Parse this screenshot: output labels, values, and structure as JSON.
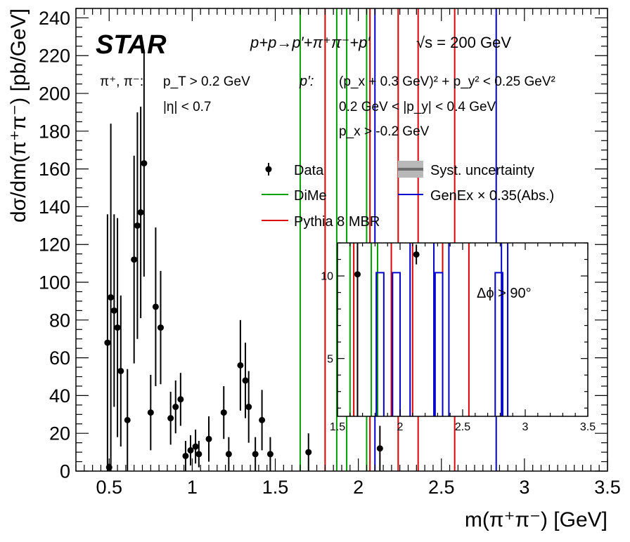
{
  "chart_data": [
    {
      "type": "scatter",
      "title": "STAR",
      "process": "p+p→p′+π⁺π⁻+p′",
      "energy": "√s = 200 GeV",
      "xlabel": "m(π⁺π⁻) [GeV]",
      "ylabel": "dσ/dm(π⁺π⁻) [pb/GeV]",
      "xlim": [
        0.3,
        3.5
      ],
      "ylim": [
        0,
        245
      ],
      "x_ticks": [
        "0.5",
        "1",
        "1.5",
        "2",
        "2.5",
        "3",
        "3.5"
      ],
      "y_ticks": [
        "0",
        "20",
        "40",
        "60",
        "80",
        "100",
        "120",
        "140",
        "160",
        "180",
        "200",
        "220",
        "240"
      ],
      "grid": false,
      "legend_position": "upper-right",
      "cuts": {
        "pion_label": "π⁺, π⁻:",
        "pion_lines": [
          "p_T > 0.2 GeV",
          "|η| < 0.7"
        ],
        "proton_label": "p′:",
        "proton_lines": [
          "(p_x + 0.3 GeV)² + p_y² < 0.25 GeV²",
          "0.2 GeV < |p_y| < 0.4 GeV",
          "p_x > -0.2 GeV"
        ]
      },
      "legend": [
        {
          "label": "Data",
          "marker": "point",
          "color": "#000000"
        },
        {
          "label": "Syst. uncertainty",
          "marker": "band",
          "color": "#a0a0a0"
        },
        {
          "label": "DiMe",
          "marker": "line",
          "color": "#00a000"
        },
        {
          "label": "GenEx × 0.35(Abs.)",
          "marker": "line",
          "color": "#0000cc"
        },
        {
          "label": "Pythia 8 MBR",
          "marker": "line",
          "color": "#dd0000"
        }
      ],
      "series": [
        {
          "name": "Data",
          "color": "#000000",
          "points": [
            {
              "x": 0.49,
              "y": 68,
              "err": 68
            },
            {
              "x": 0.5,
              "y": 2,
              "err": 2
            },
            {
              "x": 0.51,
              "y": 92,
              "err": 92
            },
            {
              "x": 0.53,
              "y": 85,
              "err": 51
            },
            {
              "x": 0.55,
              "y": 76,
              "err": 58
            },
            {
              "x": 0.57,
              "y": 53,
              "err": 40
            },
            {
              "x": 0.61,
              "y": 27,
              "err": 27
            },
            {
              "x": 0.65,
              "y": 112,
              "err": 55
            },
            {
              "x": 0.67,
              "y": 130,
              "err": 60
            },
            {
              "x": 0.69,
              "y": 137,
              "err": 56
            },
            {
              "x": 0.71,
              "y": 163,
              "err": 60
            },
            {
              "x": 0.75,
              "y": 31,
              "err": 20
            },
            {
              "x": 0.78,
              "y": 87,
              "err": 42
            },
            {
              "x": 0.81,
              "y": 76,
              "err": 30
            },
            {
              "x": 0.87,
              "y": 28,
              "err": 14
            },
            {
              "x": 0.9,
              "y": 34,
              "err": 14
            },
            {
              "x": 0.93,
              "y": 38,
              "err": 14
            },
            {
              "x": 0.96,
              "y": 8,
              "err": 8
            },
            {
              "x": 0.99,
              "y": 11,
              "err": 8
            },
            {
              "x": 1.02,
              "y": 13,
              "err": 9
            },
            {
              "x": 1.04,
              "y": 9,
              "err": 7
            },
            {
              "x": 1.1,
              "y": 17,
              "err": 12
            },
            {
              "x": 1.19,
              "y": 31,
              "err": 14
            },
            {
              "x": 1.22,
              "y": 9,
              "err": 9
            },
            {
              "x": 1.29,
              "y": 56,
              "err": 24
            },
            {
              "x": 1.32,
              "y": 48,
              "err": 20
            },
            {
              "x": 1.34,
              "y": 34,
              "err": 19
            },
            {
              "x": 1.38,
              "y": 9,
              "err": 9
            },
            {
              "x": 1.42,
              "y": 27,
              "err": 16
            },
            {
              "x": 1.47,
              "y": 9,
              "err": 9
            },
            {
              "x": 1.7,
              "y": 10,
              "err": 10
            },
            {
              "x": 2.13,
              "y": 12,
              "err": 12
            }
          ]
        },
        {
          "name": "DiMe",
          "color": "#00a000",
          "x_lines": [
            1.65,
            1.87,
            1.93,
            2.05
          ]
        },
        {
          "name": "Pythia 8 MBR",
          "color": "#dd0000",
          "x_lines": [
            1.8,
            2.07,
            2.24,
            2.36,
            2.58
          ]
        },
        {
          "name": "GenEx × 0.35(Abs.)",
          "color": "#0000cc",
          "x_lines": [
            2.1,
            2.83
          ]
        }
      ]
    },
    {
      "type": "scatter",
      "title": "Δϕ > 90°",
      "xlim": [
        1.5,
        3.5
      ],
      "ylim": [
        1.5,
        12.0
      ],
      "x_ticks": [
        "1.5",
        "2",
        "2.5",
        "3",
        "3.5"
      ],
      "y_ticks": [
        "5",
        "10"
      ],
      "series": [
        {
          "name": "Data",
          "color": "#000000",
          "points": [
            {
              "x": 1.66,
              "y": 10.1,
              "err": 10.1
            },
            {
              "x": 2.13,
              "y": 11.3,
              "err": 0.6
            }
          ]
        },
        {
          "name": "DiMe",
          "color": "#00a000",
          "x_lines": [
            1.6,
            1.77,
            1.82
          ]
        },
        {
          "name": "Pythia 8 MBR",
          "color": "#dd0000",
          "x_lines": [
            1.63,
            1.93,
            2.1,
            2.34,
            2.55
          ]
        },
        {
          "name": "GenEx × 0.35(Abs.)",
          "color": "#0000cc",
          "x_lines": [
            2.08,
            2.27,
            2.39,
            2.81,
            2.86
          ]
        },
        {
          "name": "GenEx × 0.35(Abs.) histogram",
          "color": "#0000cc",
          "steps": [
            {
              "x0": 1.81,
              "x1": 1.87,
              "y": 10.2
            },
            {
              "x0": 1.94,
              "x1": 2.0,
              "y": 10.2
            },
            {
              "x0": 2.28,
              "x1": 2.34,
              "y": 10.2
            },
            {
              "x0": 2.76,
              "x1": 2.82,
              "y": 10.2
            }
          ]
        }
      ]
    }
  ]
}
